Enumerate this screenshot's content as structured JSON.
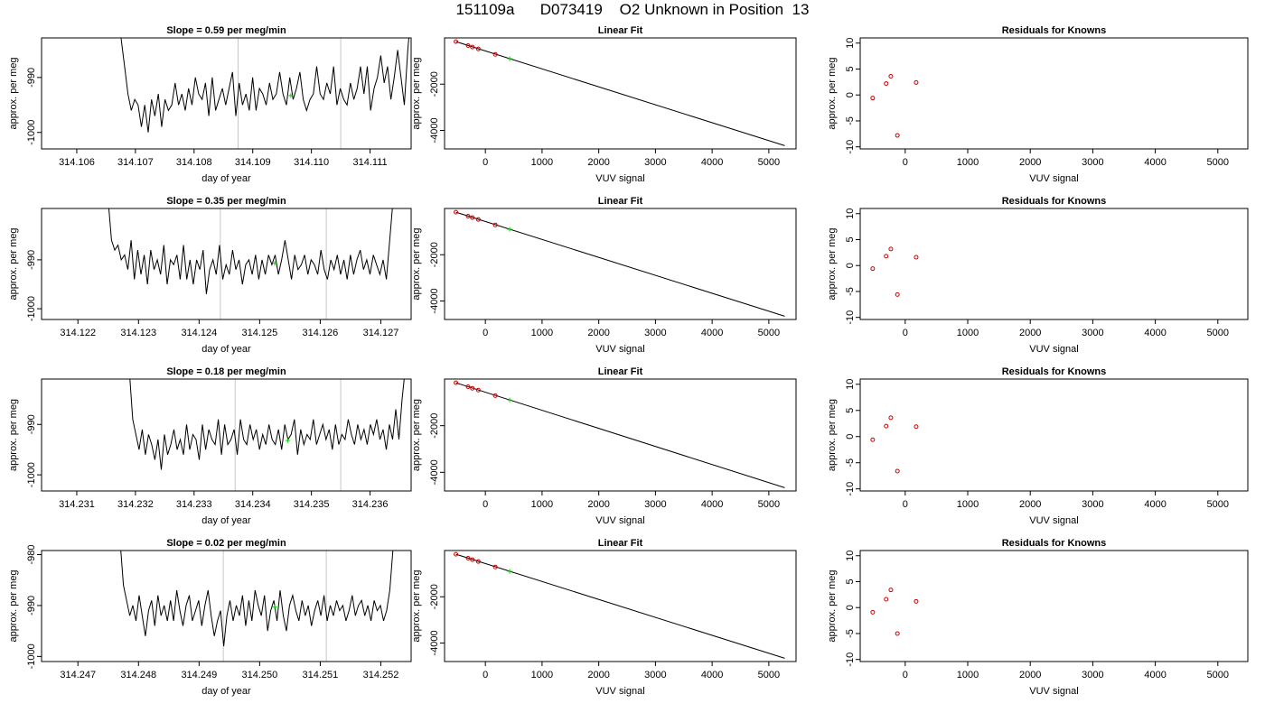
{
  "title": "151109a      D073419    O2 Unknown in Position  13",
  "colors": {
    "trace": "#000000",
    "vline": "#c8c8c8",
    "known": "#cc0000",
    "unknown": "#00cc00",
    "fitline": "#000000"
  },
  "chart_data": [
    {
      "type": "line",
      "title": "Slope =  0.59  per meg/min",
      "xlabel": "day of year",
      "ylabel": "approx. per meg",
      "xlim": [
        314.1054,
        314.1117
      ],
      "ylim": [
        -1003.0,
        -982.8
      ],
      "xticks": [
        314.106,
        314.107,
        314.108,
        314.109,
        314.11,
        314.111
      ],
      "xtick_labels": [
        "314.106",
        "314.107",
        "314.108",
        "314.109",
        "314.110",
        "314.111"
      ],
      "yticks": [
        -990,
        -1000
      ],
      "ytick_labels": [
        "-990",
        "-1000"
      ],
      "trace_x_range": [
        314.1067,
        314.1117
      ],
      "trace_y": [
        -970,
        -983,
        -988,
        -993,
        -996,
        -994,
        -995,
        -999,
        -995,
        -1000,
        -994,
        -997,
        -993,
        -999,
        -994,
        -996,
        -995,
        -991,
        -995,
        -993,
        -996,
        -992,
        -995,
        -990,
        -993,
        -994,
        -991,
        -997,
        -990,
        -996,
        -994,
        -992,
        -995,
        -992,
        -989,
        -997,
        -991,
        -995,
        -993,
        -996,
        -990,
        -996,
        -992,
        -993,
        -995,
        -991,
        -994,
        -993,
        -989,
        -993,
        -995,
        -990,
        -994,
        -992,
        -989,
        -994,
        -996,
        -994,
        -993,
        -988,
        -993,
        -994,
        -991,
        -993,
        -988,
        -995,
        -992,
        -994,
        -995,
        -991,
        -994,
        -992,
        -988,
        -993,
        -988,
        -996,
        -992,
        -990,
        -986,
        -991,
        -988,
        -994,
        -990,
        -985,
        -990,
        -995,
        -985,
        -978
      ],
      "vlines": [
        314.10875,
        314.1105
      ],
      "unknown_point": {
        "x": 314.10965,
        "y": -993.3
      }
    },
    {
      "type": "scatter",
      "title": "Linear Fit",
      "xlabel": "VUV signal",
      "ylabel": "approx. per meg",
      "xlim": [
        -720,
        5480
      ],
      "ylim": [
        -4800,
        0
      ],
      "xticks": [
        0,
        1000,
        2000,
        3000,
        4000,
        5000
      ],
      "xtick_labels": [
        "0",
        "1000",
        "2000",
        "3000",
        "4000",
        "5000"
      ],
      "yticks": [
        -2000,
        -4000
      ],
      "ytick_labels": [
        "-2000",
        "-4000"
      ],
      "fit_line": {
        "x": [
          -520,
          5280
        ],
        "y": [
          -160,
          -4660
        ]
      },
      "knowns": {
        "x": [
          -520,
          -305,
          -230,
          -125,
          175
        ],
        "y": [
          -160,
          -330,
          -395,
          -475,
          -710
        ]
      },
      "unknown": {
        "x": 430,
        "y": -900
      }
    },
    {
      "type": "scatter",
      "title": "Residuals for Knowns",
      "xlabel": "VUV signal",
      "ylabel": "",
      "xlim": [
        -720,
        5480
      ],
      "ylim": [
        -10.4,
        11.0
      ],
      "xticks": [
        0,
        1000,
        2000,
        3000,
        4000,
        5000
      ],
      "xtick_labels": [
        "0",
        "1000",
        "2000",
        "3000",
        "4000",
        "5000"
      ],
      "yticks": [
        10,
        5,
        0,
        -5,
        -10
      ],
      "ytick_labels": [
        "10",
        "5",
        "0",
        "-5",
        "-10"
      ],
      "x": [
        -520,
        -305,
        -230,
        -125,
        175
      ],
      "y": [
        -0.6,
        2.2,
        3.6,
        -7.8,
        2.4
      ]
    },
    {
      "type": "line",
      "title": "Slope =  0.35  per meg/min",
      "xlabel": "day of year",
      "ylabel": "approx. per meg",
      "xlim": [
        314.1214,
        314.1275
      ],
      "ylim": [
        -1002.2,
        -979.5
      ],
      "xticks": [
        314.122,
        314.123,
        314.124,
        314.125,
        314.126,
        314.127
      ],
      "xtick_labels": [
        "314.122",
        "314.123",
        "314.124",
        "314.125",
        "314.126",
        "314.127"
      ],
      "yticks": [
        -990,
        -1000
      ],
      "ytick_labels": [
        "-990",
        "-1000"
      ],
      "trace_x_range": [
        314.1225,
        314.1272
      ],
      "trace_y": [
        -978,
        -986,
        -988,
        -987,
        -990,
        -989,
        -992,
        -986,
        -994,
        -988,
        -993,
        -989,
        -995,
        -988,
        -992,
        -990,
        -993,
        -987,
        -995,
        -990,
        -991,
        -989,
        -994,
        -987,
        -994,
        -990,
        -995,
        -990,
        -992,
        -988,
        -997,
        -992,
        -990,
        -993,
        -987,
        -994,
        -991,
        -993,
        -988,
        -992,
        -990,
        -995,
        -991,
        -990,
        -993,
        -989,
        -994,
        -990,
        -993,
        -989,
        -991,
        -989,
        -993,
        -990,
        -986,
        -990,
        -994,
        -989,
        -992,
        -991,
        -989,
        -993,
        -990,
        -991,
        -993,
        -988,
        -992,
        -994,
        -990,
        -992,
        -989,
        -993,
        -990,
        -994,
        -989,
        -993,
        -990,
        -988,
        -992,
        -990,
        -993,
        -989,
        -991,
        -993,
        -990,
        -994,
        -986,
        -978
      ],
      "vlines": [
        314.12435,
        314.1261
      ],
      "unknown_point": {
        "x": 314.12525,
        "y": -990.7
      }
    },
    {
      "type": "scatter",
      "title": "Linear Fit",
      "xlabel": "VUV signal",
      "ylabel": "approx. per meg",
      "xlim": [
        -720,
        5480
      ],
      "ylim": [
        -4800,
        0
      ],
      "xticks": [
        0,
        1000,
        2000,
        3000,
        4000,
        5000
      ],
      "xtick_labels": [
        "0",
        "1000",
        "2000",
        "3000",
        "4000",
        "5000"
      ],
      "yticks": [
        -2000,
        -4000
      ],
      "ytick_labels": [
        "-2000",
        "-4000"
      ],
      "fit_line": {
        "x": [
          -520,
          5280
        ],
        "y": [
          -160,
          -4660
        ]
      },
      "knowns": {
        "x": [
          -520,
          -305,
          -230,
          -125,
          175
        ],
        "y": [
          -160,
          -330,
          -395,
          -475,
          -710
        ]
      },
      "unknown": {
        "x": 430,
        "y": -900
      }
    },
    {
      "type": "scatter",
      "title": "Residuals for Knowns",
      "xlabel": "VUV signal",
      "ylabel": "",
      "xlim": [
        -720,
        5480
      ],
      "ylim": [
        -10.4,
        11.0
      ],
      "xticks": [
        0,
        1000,
        2000,
        3000,
        4000,
        5000
      ],
      "xtick_labels": [
        "0",
        "1000",
        "2000",
        "3000",
        "4000",
        "5000"
      ],
      "yticks": [
        10,
        5,
        0,
        -5,
        -10
      ],
      "ytick_labels": [
        "10",
        "5",
        "0",
        "-5",
        "-10"
      ],
      "x": [
        -520,
        -305,
        -230,
        -125,
        175
      ],
      "y": [
        -0.6,
        1.8,
        3.2,
        -5.6,
        1.6
      ]
    },
    {
      "type": "line",
      "title": "Slope =  0.18  per meg/min",
      "xlabel": "day of year",
      "ylabel": "approx. per meg",
      "xlim": [
        314.2304,
        314.2367
      ],
      "ylim": [
        -1003.2,
        -981.0
      ],
      "xticks": [
        314.231,
        314.232,
        314.233,
        314.234,
        314.235,
        314.236
      ],
      "xtick_labels": [
        "314.231",
        "314.232",
        "314.233",
        "314.234",
        "314.235",
        "314.236"
      ],
      "yticks": [
        -990,
        -1000
      ],
      "ytick_labels": [
        "-990",
        "-1000"
      ],
      "trace_x_range": [
        314.2319,
        314.2366
      ],
      "trace_y": [
        -980,
        -989,
        -992,
        -995,
        -991,
        -996,
        -992,
        -994,
        -997,
        -993,
        -999,
        -992,
        -996,
        -994,
        -991,
        -995,
        -993,
        -996,
        -990,
        -995,
        -992,
        -993,
        -997,
        -990,
        -995,
        -991,
        -993,
        -994,
        -989,
        -996,
        -990,
        -994,
        -993,
        -991,
        -996,
        -989,
        -993,
        -994,
        -990,
        -993,
        -991,
        -995,
        -992,
        -994,
        -990,
        -993,
        -994,
        -991,
        -995,
        -990,
        -993,
        -992,
        -989,
        -996,
        -991,
        -994,
        -992,
        -993,
        -989,
        -994,
        -992,
        -990,
        -993,
        -991,
        -995,
        -990,
        -994,
        -992,
        -993,
        -989,
        -992,
        -994,
        -990,
        -993,
        -991,
        -994,
        -990,
        -992,
        -989,
        -993,
        -991,
        -995,
        -990,
        -993,
        -987,
        -993,
        -985,
        -979
      ],
      "vlines": [
        314.2337,
        314.2355
      ],
      "unknown_point": {
        "x": 314.2346,
        "y": -993.2
      }
    },
    {
      "type": "scatter",
      "title": "Linear Fit",
      "xlabel": "VUV signal",
      "ylabel": "approx. per meg",
      "xlim": [
        -720,
        5480
      ],
      "ylim": [
        -4800,
        0
      ],
      "xticks": [
        0,
        1000,
        2000,
        3000,
        4000,
        5000
      ],
      "xtick_labels": [
        "0",
        "1000",
        "2000",
        "3000",
        "4000",
        "5000"
      ],
      "yticks": [
        -2000,
        -4000
      ],
      "ytick_labels": [
        "-2000",
        "-4000"
      ],
      "fit_line": {
        "x": [
          -520,
          5280
        ],
        "y": [
          -160,
          -4660
        ]
      },
      "knowns": {
        "x": [
          -520,
          -305,
          -230,
          -125,
          175
        ],
        "y": [
          -160,
          -330,
          -395,
          -475,
          -710
        ]
      },
      "unknown": {
        "x": 430,
        "y": -900
      }
    },
    {
      "type": "scatter",
      "title": "Residuals for Knowns",
      "xlabel": "VUV signal",
      "ylabel": "",
      "xlim": [
        -720,
        5480
      ],
      "ylim": [
        -10.4,
        11.0
      ],
      "xticks": [
        0,
        1000,
        2000,
        3000,
        4000,
        5000
      ],
      "xtick_labels": [
        "0",
        "1000",
        "2000",
        "3000",
        "4000",
        "5000"
      ],
      "yticks": [
        10,
        5,
        0,
        -5,
        -10
      ],
      "ytick_labels": [
        "10",
        "5",
        "0",
        "-5",
        "-10"
      ],
      "x": [
        -520,
        -305,
        -230,
        -125,
        175
      ],
      "y": [
        -0.6,
        2.0,
        3.6,
        -6.6,
        1.9
      ]
    },
    {
      "type": "line",
      "title": "Slope =  0.02  per meg/min",
      "xlabel": "day of year",
      "ylabel": "approx. per meg",
      "xlim": [
        314.2464,
        314.2525
      ],
      "ylim": [
        -1001.0,
        -979.2
      ],
      "xticks": [
        314.247,
        314.248,
        314.249,
        314.25,
        314.251,
        314.252
      ],
      "xtick_labels": [
        "314.247",
        "314.248",
        "314.249",
        "314.250",
        "314.251",
        "314.252"
      ],
      "yticks": [
        -980,
        -990,
        -1000
      ],
      "ytick_labels": [
        "-980",
        "-990",
        "-1000"
      ],
      "trace_x_range": [
        314.2477,
        314.2522
      ],
      "trace_y": [
        -978,
        -986,
        -989,
        -992,
        -990,
        -993,
        -988,
        -992,
        -996,
        -991,
        -989,
        -994,
        -988,
        -992,
        -990,
        -993,
        -989,
        -993,
        -987,
        -991,
        -994,
        -990,
        -988,
        -993,
        -991,
        -989,
        -994,
        -990,
        -987,
        -992,
        -996,
        -993,
        -991,
        -998,
        -992,
        -989,
        -993,
        -990,
        -992,
        -988,
        -994,
        -989,
        -993,
        -987,
        -990,
        -992,
        -988,
        -995,
        -991,
        -989,
        -993,
        -987,
        -992,
        -995,
        -990,
        -988,
        -991,
        -993,
        -989,
        -992,
        -990,
        -994,
        -991,
        -989,
        -992,
        -988,
        -993,
        -990,
        -992,
        -989,
        -991,
        -990,
        -993,
        -991,
        -988,
        -992,
        -990,
        -989,
        -992,
        -990,
        -993,
        -989,
        -991,
        -990,
        -993,
        -991,
        -987,
        -979
      ],
      "vlines": [
        314.2494,
        314.2511
      ],
      "unknown_point": {
        "x": 314.25025,
        "y": -990.3
      }
    },
    {
      "type": "scatter",
      "title": "Linear Fit",
      "xlabel": "VUV signal",
      "ylabel": "approx. per meg",
      "xlim": [
        -720,
        5480
      ],
      "ylim": [
        -4800,
        0
      ],
      "xticks": [
        0,
        1000,
        2000,
        3000,
        4000,
        5000
      ],
      "xtick_labels": [
        "0",
        "1000",
        "2000",
        "3000",
        "4000",
        "5000"
      ],
      "yticks": [
        -2000,
        -4000
      ],
      "ytick_labels": [
        "-2000",
        "-4000"
      ],
      "fit_line": {
        "x": [
          -520,
          5280
        ],
        "y": [
          -160,
          -4660
        ]
      },
      "knowns": {
        "x": [
          -520,
          -305,
          -230,
          -125,
          175
        ],
        "y": [
          -160,
          -330,
          -395,
          -475,
          -710
        ]
      },
      "unknown": {
        "x": 430,
        "y": -900
      }
    },
    {
      "type": "scatter",
      "title": "Residuals for Knowns",
      "xlabel": "VUV signal",
      "ylabel": "",
      "xlim": [
        -720,
        5480
      ],
      "ylim": [
        -10.4,
        11.0
      ],
      "xticks": [
        0,
        1000,
        2000,
        3000,
        4000,
        5000
      ],
      "xtick_labels": [
        "0",
        "1000",
        "2000",
        "3000",
        "4000",
        "5000"
      ],
      "yticks": [
        10,
        5,
        0,
        -5,
        -10
      ],
      "ytick_labels": [
        "10",
        "5",
        "0",
        "-5",
        "-10"
      ],
      "x": [
        -520,
        -305,
        -230,
        -125,
        175
      ],
      "y": [
        -0.9,
        1.6,
        3.4,
        -5.0,
        1.2
      ]
    }
  ]
}
